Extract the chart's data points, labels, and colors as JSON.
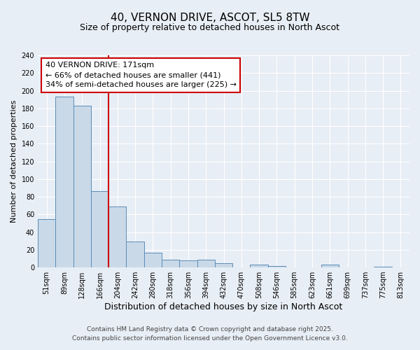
{
  "title": "40, VERNON DRIVE, ASCOT, SL5 8TW",
  "subtitle": "Size of property relative to detached houses in North Ascot",
  "xlabel": "Distribution of detached houses by size in North Ascot",
  "ylabel": "Number of detached properties",
  "bar_labels": [
    "51sqm",
    "89sqm",
    "128sqm",
    "166sqm",
    "204sqm",
    "242sqm",
    "280sqm",
    "318sqm",
    "356sqm",
    "394sqm",
    "432sqm",
    "470sqm",
    "508sqm",
    "546sqm",
    "585sqm",
    "623sqm",
    "661sqm",
    "699sqm",
    "737sqm",
    "775sqm",
    "813sqm"
  ],
  "bar_values": [
    55,
    193,
    183,
    86,
    69,
    29,
    17,
    9,
    8,
    9,
    5,
    0,
    3,
    2,
    0,
    0,
    3,
    0,
    0,
    1,
    0
  ],
  "bar_color": "#c9d9e8",
  "bar_edge_color": "#5b8db8",
  "vline_color": "#cc0000",
  "vline_index": 3,
  "annotation_line1": "40 VERNON DRIVE: 171sqm",
  "annotation_line2": "← 66% of detached houses are smaller (441)",
  "annotation_line3": "34% of semi-detached houses are larger (225) →",
  "annotation_box_color": "#ffffff",
  "annotation_box_edge": "#cc0000",
  "ylim": [
    0,
    240
  ],
  "yticks": [
    0,
    20,
    40,
    60,
    80,
    100,
    120,
    140,
    160,
    180,
    200,
    220,
    240
  ],
  "background_color": "#e8eef5",
  "grid_color": "#ffffff",
  "footer_line1": "Contains HM Land Registry data © Crown copyright and database right 2025.",
  "footer_line2": "Contains public sector information licensed under the Open Government Licence v3.0.",
  "title_fontsize": 11,
  "subtitle_fontsize": 9,
  "xlabel_fontsize": 9,
  "ylabel_fontsize": 8,
  "tick_fontsize": 7,
  "annotation_fontsize": 8,
  "footer_fontsize": 6.5
}
